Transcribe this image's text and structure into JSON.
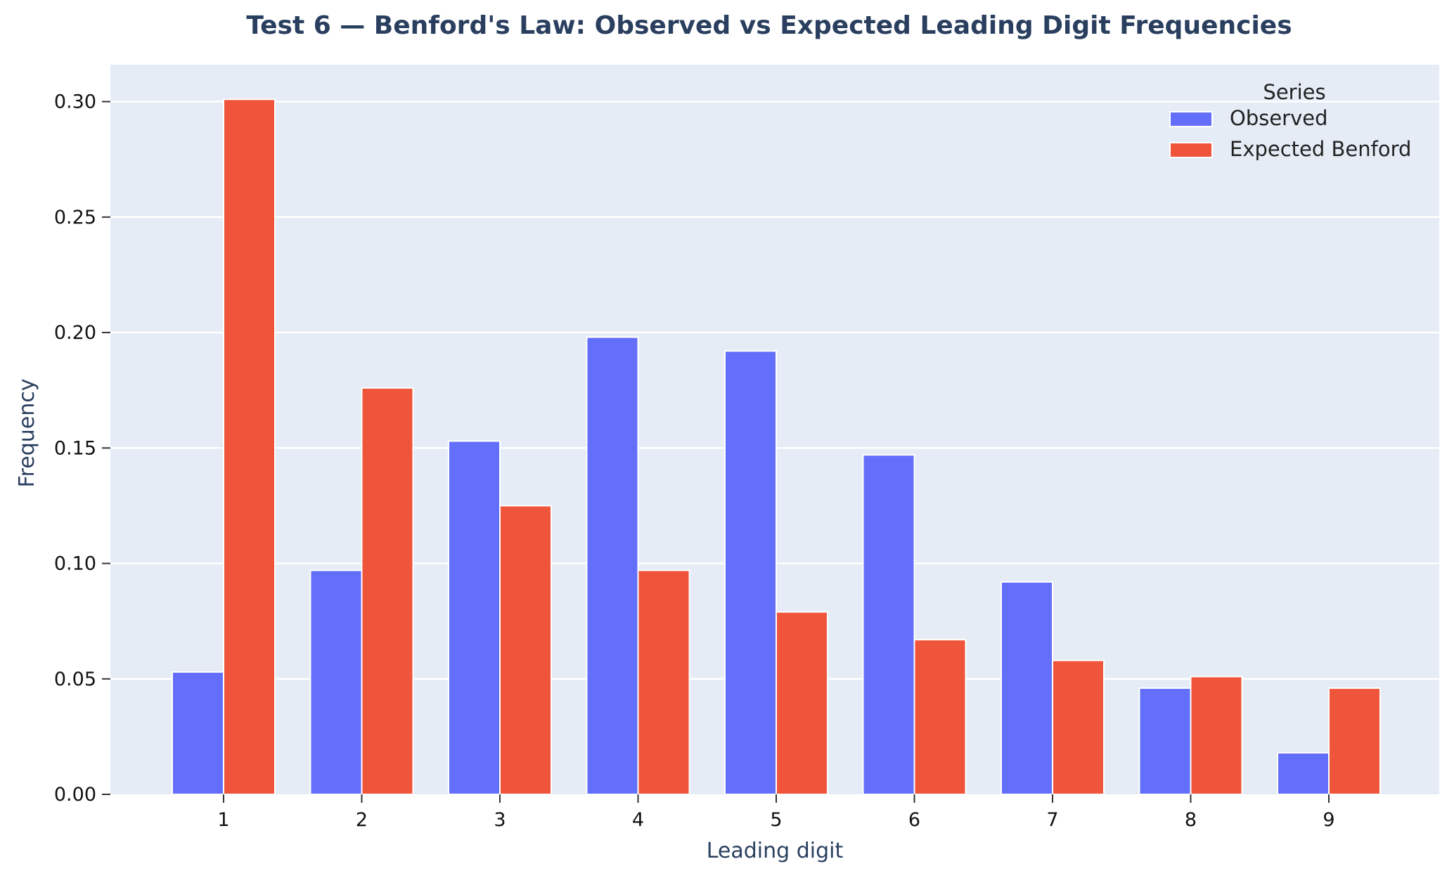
{
  "chart_data": {
    "type": "bar",
    "title": "Test 6 — Benford's Law: Observed vs Expected Leading Digit Frequencies",
    "xlabel": "Leading digit",
    "ylabel": "Frequency",
    "categories": [
      "1",
      "2",
      "3",
      "4",
      "5",
      "6",
      "7",
      "8",
      "9"
    ],
    "series": [
      {
        "name": "Observed",
        "color": "#636efa",
        "values": [
          0.053,
          0.097,
          0.153,
          0.198,
          0.192,
          0.147,
          0.092,
          0.046,
          0.018
        ]
      },
      {
        "name": "Expected Benford",
        "color": "#ef553b",
        "values": [
          0.301,
          0.176,
          0.125,
          0.097,
          0.079,
          0.067,
          0.058,
          0.051,
          0.046
        ]
      }
    ],
    "ylim": [
      0,
      0.316
    ],
    "yticks": [
      "0.00",
      "0.05",
      "0.10",
      "0.15",
      "0.20",
      "0.25",
      "0.30"
    ],
    "legend": {
      "title": "Series",
      "placement": "top-right"
    },
    "grid": true,
    "plot_background": "#e5ecf6",
    "grid_color": "#ffffff"
  }
}
